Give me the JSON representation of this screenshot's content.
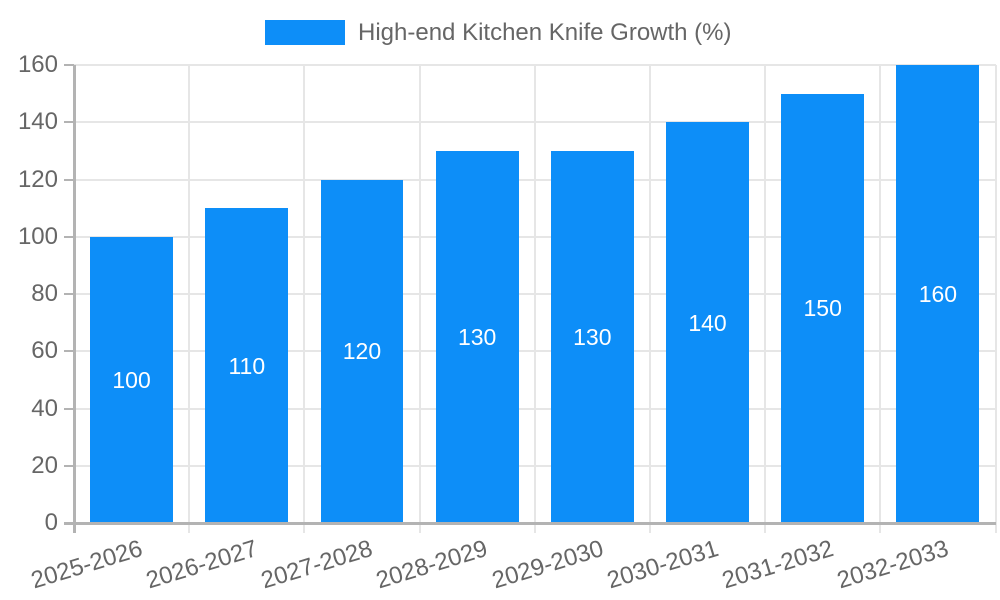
{
  "legend": {
    "items": [
      {
        "label": "High-end Kitchen Knife Growth (%)",
        "swatch_color": "#0d8ef8"
      }
    ]
  },
  "chart_data": {
    "type": "bar",
    "title": "",
    "categories": [
      "2025-2026",
      "2026-2027",
      "2027-2028",
      "2028-2029",
      "2029-2030",
      "2030-2031",
      "2031-2032",
      "2032-2033"
    ],
    "series": [
      {
        "name": "High-end Kitchen Knife Growth (%)",
        "values": [
          100,
          110,
          120,
          130,
          130,
          140,
          150,
          160
        ]
      }
    ],
    "xlabel": "",
    "ylabel": "",
    "ylim": [
      0,
      160
    ],
    "ytick_step": 20,
    "yticks": [
      0,
      20,
      40,
      60,
      80,
      100,
      120,
      140,
      160
    ],
    "grid": true,
    "legend_position": "top-center",
    "bar_labels_visible": true,
    "x_label_rotation_deg": -17,
    "colors": {
      "bar": "#0d8ef8",
      "grid_line": "#e6e6e6",
      "axis_line": "#b3b3b3",
      "tick_text": "#666666",
      "legend_text": "#666666",
      "bar_value_text": "#ffffff",
      "background": "#ffffff"
    }
  }
}
